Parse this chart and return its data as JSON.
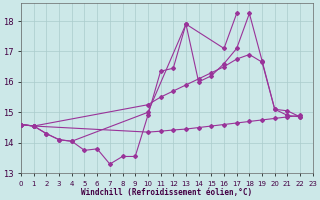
{
  "xlabel": "Windchill (Refroidissement éolien,°C)",
  "bg_color": "#cce8e8",
  "grid_color": "#aacccc",
  "line_color": "#993399",
  "xlim": [
    0,
    23
  ],
  "ylim": [
    13,
    18.6
  ],
  "yticks": [
    13,
    14,
    15,
    16,
    17,
    18
  ],
  "xticks": [
    0,
    1,
    2,
    3,
    4,
    5,
    6,
    7,
    8,
    9,
    10,
    11,
    12,
    13,
    14,
    15,
    16,
    17,
    18,
    19,
    20,
    21,
    22,
    23
  ],
  "lines": [
    {
      "x": [
        0,
        1,
        2,
        3,
        4,
        5,
        6,
        7,
        8,
        9,
        10,
        11,
        12,
        13,
        14,
        15,
        16,
        17,
        18,
        19,
        20,
        21,
        22
      ],
      "y": [
        14.6,
        14.55,
        14.3,
        14.1,
        14.05,
        13.75,
        13.8,
        13.3,
        13.55,
        13.55,
        14.9,
        16.35,
        16.45,
        17.9,
        16.0,
        16.2,
        16.6,
        17.1,
        18.25,
        16.7,
        15.1,
        15.05,
        14.85
      ]
    },
    {
      "x": [
        0,
        1,
        10,
        11,
        12,
        13,
        14,
        15,
        16,
        17,
        18,
        19,
        20,
        21,
        22
      ],
      "y": [
        14.6,
        14.55,
        15.25,
        15.5,
        15.7,
        15.9,
        16.1,
        16.3,
        16.5,
        16.75,
        16.9,
        16.65,
        15.1,
        14.9,
        14.85
      ]
    },
    {
      "x": [
        0,
        1,
        10,
        11,
        12,
        13,
        14,
        15,
        16,
        17,
        18,
        19,
        20,
        21,
        22
      ],
      "y": [
        14.6,
        14.55,
        14.35,
        14.38,
        14.42,
        14.45,
        14.5,
        14.55,
        14.6,
        14.65,
        14.7,
        14.75,
        14.8,
        14.85,
        14.9
      ]
    },
    {
      "x": [
        0,
        1,
        2,
        3,
        4,
        10,
        13,
        16,
        17
      ],
      "y": [
        14.6,
        14.55,
        14.3,
        14.1,
        14.05,
        15.0,
        17.9,
        17.1,
        18.25
      ]
    }
  ]
}
